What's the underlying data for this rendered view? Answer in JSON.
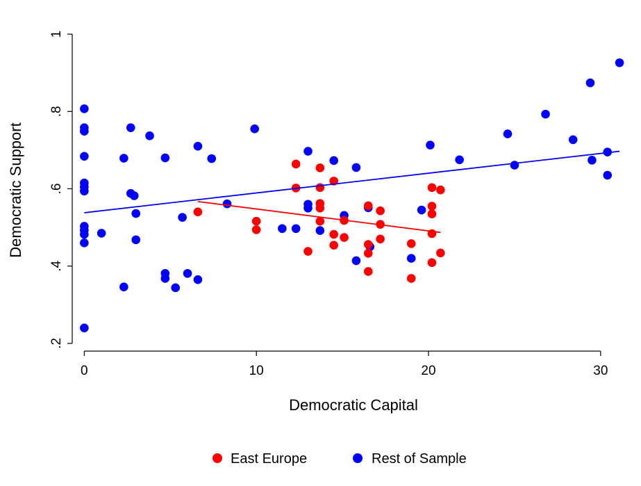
{
  "chart_data": {
    "type": "scatter",
    "xlabel": "Democratic Capital",
    "ylabel": "Democratic Support",
    "xlim": [
      -0.7,
      31.5
    ],
    "ylim": [
      0.18,
      1.02
    ],
    "x_ticks": [
      0,
      10,
      20,
      30
    ],
    "x_tick_labels": [
      "0",
      "10",
      "20",
      "30"
    ],
    "y_ticks": [
      0.2,
      0.4,
      0.6,
      0.8,
      1.0
    ],
    "y_tick_labels": [
      ".2",
      ".4",
      ".6",
      ".8",
      "1"
    ],
    "grid": false,
    "legend_position": "bottom",
    "series": [
      {
        "name": "East Europe",
        "color": "#ff0000",
        "points": [
          [
            6.6,
            0.54
          ],
          [
            10.0,
            0.516
          ],
          [
            10.0,
            0.494
          ],
          [
            12.3,
            0.664
          ],
          [
            12.3,
            0.602
          ],
          [
            13.0,
            0.438
          ],
          [
            13.7,
            0.654
          ],
          [
            13.7,
            0.603
          ],
          [
            13.7,
            0.562
          ],
          [
            13.7,
            0.55
          ],
          [
            13.7,
            0.516
          ],
          [
            14.5,
            0.62
          ],
          [
            14.5,
            0.482
          ],
          [
            14.5,
            0.454
          ],
          [
            15.1,
            0.518
          ],
          [
            15.1,
            0.474
          ],
          [
            16.5,
            0.556
          ],
          [
            16.5,
            0.456
          ],
          [
            16.5,
            0.433
          ],
          [
            16.5,
            0.386
          ],
          [
            17.2,
            0.543
          ],
          [
            17.2,
            0.508
          ],
          [
            17.2,
            0.47
          ],
          [
            19.0,
            0.458
          ],
          [
            19.0,
            0.368
          ],
          [
            20.2,
            0.603
          ],
          [
            20.2,
            0.555
          ],
          [
            20.2,
            0.535
          ],
          [
            20.2,
            0.484
          ],
          [
            20.2,
            0.409
          ],
          [
            20.7,
            0.597
          ],
          [
            20.7,
            0.434
          ]
        ],
        "fit_line": [
          [
            6.6,
            0.567
          ],
          [
            20.7,
            0.487
          ]
        ]
      },
      {
        "name": "Rest of Sample",
        "color": "#0000ff",
        "points": [
          [
            0.0,
            0.807
          ],
          [
            0.0,
            0.758
          ],
          [
            0.0,
            0.749
          ],
          [
            0.0,
            0.684
          ],
          [
            0.0,
            0.615
          ],
          [
            0.0,
            0.605
          ],
          [
            0.0,
            0.594
          ],
          [
            0.0,
            0.503
          ],
          [
            0.0,
            0.493
          ],
          [
            0.0,
            0.482
          ],
          [
            0.0,
            0.46
          ],
          [
            0.0,
            0.24
          ],
          [
            1.0,
            0.485
          ],
          [
            2.3,
            0.679
          ],
          [
            2.3,
            0.346
          ],
          [
            2.7,
            0.758
          ],
          [
            2.7,
            0.588
          ],
          [
            2.9,
            0.582
          ],
          [
            3.0,
            0.536
          ],
          [
            3.0,
            0.468
          ],
          [
            3.8,
            0.737
          ],
          [
            4.7,
            0.68
          ],
          [
            4.7,
            0.381
          ],
          [
            4.7,
            0.368
          ],
          [
            5.3,
            0.344
          ],
          [
            5.7,
            0.526
          ],
          [
            6.0,
            0.381
          ],
          [
            6.6,
            0.71
          ],
          [
            6.6,
            0.365
          ],
          [
            7.4,
            0.678
          ],
          [
            8.3,
            0.561
          ],
          [
            9.9,
            0.755
          ],
          [
            11.5,
            0.497
          ],
          [
            12.3,
            0.497
          ],
          [
            13.0,
            0.697
          ],
          [
            13.0,
            0.56
          ],
          [
            13.0,
            0.55
          ],
          [
            13.7,
            0.492
          ],
          [
            14.5,
            0.673
          ],
          [
            15.1,
            0.531
          ],
          [
            15.8,
            0.655
          ],
          [
            15.8,
            0.414
          ],
          [
            16.5,
            0.551
          ],
          [
            16.6,
            0.45
          ],
          [
            19.0,
            0.42
          ],
          [
            19.6,
            0.545
          ],
          [
            20.1,
            0.713
          ],
          [
            21.8,
            0.675
          ],
          [
            24.6,
            0.742
          ],
          [
            25.0,
            0.661
          ],
          [
            26.8,
            0.793
          ],
          [
            28.4,
            0.727
          ],
          [
            29.4,
            0.874
          ],
          [
            29.5,
            0.674
          ],
          [
            30.4,
            0.695
          ],
          [
            30.4,
            0.635
          ],
          [
            31.1,
            0.926
          ]
        ],
        "fit_line": [
          [
            0.0,
            0.538
          ],
          [
            31.1,
            0.697
          ]
        ]
      }
    ]
  }
}
